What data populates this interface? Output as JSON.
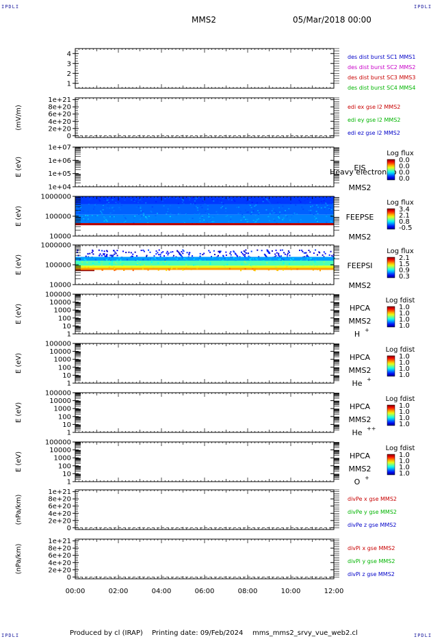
{
  "header": {
    "corner_tl": "IPDLI",
    "corner_tr": "IPDLI",
    "corner_bl": "IPDLI",
    "corner_br": "IPDLI",
    "spacecraft": "MMS2",
    "date": "05/Mar/2018 00:00"
  },
  "footer": {
    "produced_by": "Produced by cl (IRAP)",
    "printing_date": "Printing date: 09/Feb/2024",
    "filename": "mms_mms2_srvy_vue_web2.cl"
  },
  "colors": {
    "sc1": "#0000c8",
    "sc2": "#c800c8",
    "sc3": "#c80000",
    "sc4": "#00b400",
    "x": "#c80000",
    "y": "#00b400",
    "z": "#0000c8"
  },
  "chart_data": [
    {
      "type": "line",
      "panel": "des dist burst",
      "ylabel": "",
      "yticks": [
        "1",
        "2",
        "3",
        "4"
      ],
      "ylim": [
        0.5,
        4.5
      ],
      "series": [
        {
          "name": "des dist burst SC1 MMS1",
          "values": []
        },
        {
          "name": "des dist burst SC2 MMS2",
          "values": []
        },
        {
          "name": "des dist burst SC3 MMS3",
          "values": []
        },
        {
          "name": "des dist burst SC4 MMS4",
          "values": []
        }
      ]
    },
    {
      "type": "line",
      "panel": "edi",
      "ylabel": "(mV/m)",
      "yticks": [
        "0",
        "2e+20",
        "4e+20",
        "6e+20",
        "8e+20",
        "1e+21"
      ],
      "ylim": [
        -5e+19,
        1.05e+21
      ],
      "series": [
        {
          "name": "edi ex gse l2 MMS2",
          "values": []
        },
        {
          "name": "edi ey gse l2 MMS2",
          "values": []
        },
        {
          "name": "edi ez gse l2 MMS2",
          "values": []
        }
      ]
    },
    {
      "type": "heatmap",
      "panel": "EIS",
      "ylabel": "E (eV)",
      "yticks": [
        "1e+04",
        "1e+05",
        "1e+06",
        "1e+07"
      ],
      "log": true,
      "ylim": [
        10000,
        10000000
      ],
      "labels": [
        "EIS",
        "MMS2"
      ],
      "overlay": "Heavy electron to",
      "colorbar_title": "Log flux",
      "colorbar_ticks": [
        "0.0",
        "0.0",
        "0.0",
        "0.0"
      ],
      "fill": "none"
    },
    {
      "type": "heatmap",
      "panel": "FEEPSE",
      "ylabel": "E (eV)",
      "yticks": [
        "10000",
        "100000",
        "1000000"
      ],
      "log": true,
      "ylim": [
        10000,
        1000000
      ],
      "labels": [
        "FEEPSE",
        "MMS2"
      ],
      "colorbar_title": "Log flux",
      "colorbar_ticks": [
        "3.4",
        "2.1",
        "0.8",
        "-0.5"
      ],
      "fill": "electron"
    },
    {
      "type": "heatmap",
      "panel": "FEEPSI",
      "ylabel": "E (eV)",
      "yticks": [
        "10000",
        "100000",
        "1000000"
      ],
      "log": true,
      "ylim": [
        10000,
        1000000
      ],
      "labels": [
        "FEEPSI",
        "MMS2"
      ],
      "colorbar_title": "Log flux",
      "colorbar_ticks": [
        "2.1",
        "1.5",
        "0.9",
        "0.3"
      ],
      "fill": "ion"
    },
    {
      "type": "heatmap",
      "panel": "HPCA H+",
      "ylabel": "E (eV)",
      "yticks": [
        "1",
        "10",
        "100",
        "1000",
        "10000",
        "100000"
      ],
      "log": true,
      "ylim": [
        1,
        100000
      ],
      "labels": [
        "HPCA",
        "MMS2"
      ],
      "species": "H",
      "species_sup": "+",
      "colorbar_title": "Log fdist",
      "colorbar_ticks": [
        "1.0",
        "1.0",
        "1.0",
        "1.0"
      ],
      "fill": "none"
    },
    {
      "type": "heatmap",
      "panel": "HPCA He+",
      "ylabel": "E (eV)",
      "yticks": [
        "1",
        "10",
        "100",
        "1000",
        "10000",
        "100000"
      ],
      "log": true,
      "ylim": [
        1,
        100000
      ],
      "labels": [
        "HPCA",
        "MMS2"
      ],
      "species": "He",
      "species_sup": "+",
      "colorbar_title": "Log fdist",
      "colorbar_ticks": [
        "1.0",
        "1.0",
        "1.0",
        "1.0"
      ],
      "fill": "none"
    },
    {
      "type": "heatmap",
      "panel": "HPCA He++",
      "ylabel": "E (eV)",
      "yticks": [
        "1",
        "10",
        "100",
        "1000",
        "10000",
        "100000"
      ],
      "log": true,
      "ylim": [
        1,
        100000
      ],
      "labels": [
        "HPCA",
        "MMS2"
      ],
      "species": "He",
      "species_sup": "++",
      "colorbar_title": "Log fdist",
      "colorbar_ticks": [
        "1.0",
        "1.0",
        "1.0",
        "1.0"
      ],
      "fill": "none"
    },
    {
      "type": "heatmap",
      "panel": "HPCA O+",
      "ylabel": "E (eV)",
      "yticks": [
        "1",
        "10",
        "100",
        "1000",
        "10000",
        "100000"
      ],
      "log": true,
      "ylim": [
        1,
        100000
      ],
      "labels": [
        "HPCA",
        "MMS2"
      ],
      "species": "O",
      "species_sup": "+",
      "colorbar_title": "Log fdist",
      "colorbar_ticks": [
        "1.0",
        "1.0",
        "1.0",
        "1.0"
      ],
      "fill": "none"
    },
    {
      "type": "line",
      "panel": "divPe",
      "ylabel": "(nPa/km)",
      "yticks": [
        "0",
        "2e+20",
        "4e+20",
        "6e+20",
        "8e+20",
        "1e+21"
      ],
      "ylim": [
        -5e+19,
        1.05e+21
      ],
      "series": [
        {
          "name": "divPe x gse MMS2",
          "values": []
        },
        {
          "name": "divPe y gse MMS2",
          "values": []
        },
        {
          "name": "divPe z gse MMS2",
          "values": []
        }
      ]
    },
    {
      "type": "line",
      "panel": "divPi",
      "ylabel": "(nPa/km)",
      "yticks": [
        "0",
        "2e+20",
        "4e+20",
        "6e+20",
        "8e+20",
        "1e+21"
      ],
      "ylim": [
        -5e+19,
        1.05e+21
      ],
      "series": [
        {
          "name": "divPi x gse MMS2",
          "values": []
        },
        {
          "name": "divPi y gse MMS2",
          "values": []
        },
        {
          "name": "divPi z gse MMS2",
          "values": []
        }
      ]
    }
  ],
  "xaxis": {
    "ticks": [
      "00:00",
      "02:00",
      "04:00",
      "06:00",
      "08:00",
      "10:00",
      "12:00"
    ]
  }
}
